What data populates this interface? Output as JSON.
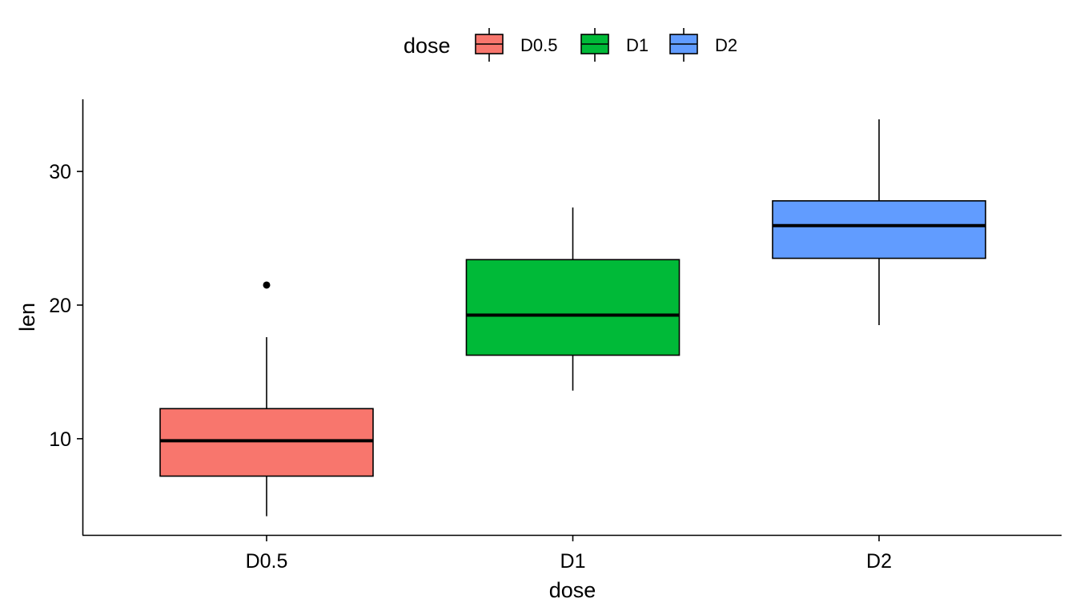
{
  "chart_data": {
    "type": "boxplot",
    "title": "",
    "xlabel": "dose",
    "ylabel": "len",
    "ylim": [
      2.8,
      35.4
    ],
    "yticks": [
      10,
      20,
      30
    ],
    "categories": [
      "D0.5",
      "D1",
      "D2"
    ],
    "legend": {
      "title": "dose",
      "position": "top",
      "entries": [
        "D0.5",
        "D1",
        "D2"
      ]
    },
    "series": [
      {
        "name": "D0.5",
        "color": "#F8766D",
        "whisker_low": 4.2,
        "q1": 7.2,
        "median": 9.85,
        "q3": 12.25,
        "whisker_high": 17.6,
        "outliers": [
          21.5
        ]
      },
      {
        "name": "D1",
        "color": "#00BA38",
        "whisker_low": 13.6,
        "q1": 16.25,
        "median": 19.25,
        "q3": 23.4,
        "whisker_high": 27.3,
        "outliers": []
      },
      {
        "name": "D2",
        "color": "#619CFF",
        "whisker_low": 18.5,
        "q1": 23.5,
        "median": 25.95,
        "q3": 27.8,
        "whisker_high": 33.9,
        "outliers": []
      }
    ]
  }
}
